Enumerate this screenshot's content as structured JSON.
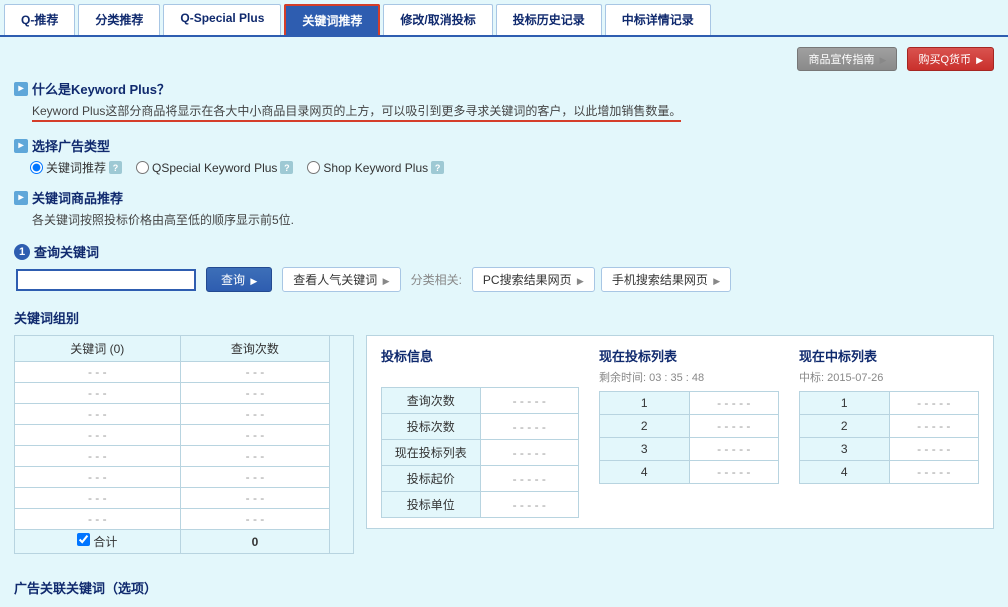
{
  "tabs": [
    "Q-推荐",
    "分类推荐",
    "Q-Special Plus",
    "关键词推荐",
    "修改/取消投标",
    "投标历史记录",
    "中标详情记录"
  ],
  "active_tab_index": 3,
  "top_buttons": {
    "guide": "商品宣传指南",
    "buy": "购买Q货币"
  },
  "sections": {
    "what": {
      "title": "什么是Keyword Plus？",
      "desc": "Keyword Plus这部分商品将显示在各大中小商品目录网页的上方，可以吸引到更多寻求关键词的客户，以此增加销售数量。"
    },
    "ad_type": {
      "title": "选择广告类型",
      "options": [
        "关键词推荐",
        "QSpecial Keyword Plus",
        "Shop Keyword Plus"
      ],
      "selected": 0
    },
    "keyword_rec": {
      "title": "关键词商品推荐",
      "desc": "各关键词按照投标价格由高至低的顺序显示前5位."
    }
  },
  "step": {
    "num": "1",
    "title": "查询关键词",
    "query_btn": "查询",
    "pop_btn": "查看人气关键词",
    "related_label": "分类相关:",
    "related_buttons": [
      "PC搜索结果网页",
      "手机搜索结果网页"
    ]
  },
  "group_title": "关键词组别",
  "keyword_table": {
    "headers": [
      "关键词 (0)",
      "查询次数"
    ],
    "placeholder": "- - -",
    "rows": 8,
    "total_label": "合计",
    "total_value": "0"
  },
  "bid_info": {
    "title": "投标信息",
    "rows": [
      "查询次数",
      "投标次数",
      "现在投标列表",
      "投标起价",
      "投标单位"
    ],
    "placeholder": "- - - - -"
  },
  "current_bid": {
    "title": "现在投标列表",
    "sub": "剩余时间: 03 : 35 : 48",
    "rows": [
      "1",
      "2",
      "3",
      "4"
    ],
    "placeholder": "- - - - -"
  },
  "current_win": {
    "title": "现在中标列表",
    "sub": "中标: 2015-07-26",
    "rows": [
      "1",
      "2",
      "3",
      "4"
    ],
    "placeholder": "- - - - -"
  },
  "footer": "广告关联关键词（选项）"
}
